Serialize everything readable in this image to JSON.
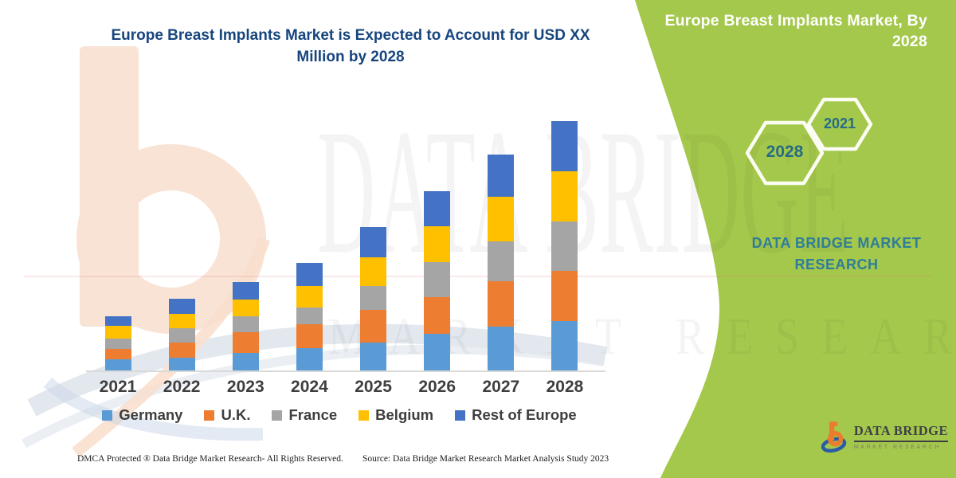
{
  "chart": {
    "title": "Europe Breast Implants Market is Expected to Account for USD XX Million by 2028",
    "title_color": "#17457E",
    "axis_line_color": "#D9D9D9",
    "label_color": "#3E3E3E"
  },
  "chart_data": {
    "type": "bar",
    "stacked": true,
    "categories": [
      "2021",
      "2022",
      "2023",
      "2024",
      "2025",
      "2026",
      "2027",
      "2028"
    ],
    "series": [
      {
        "name": "Germany",
        "color": "#5B9BD5",
        "values": [
          15,
          17,
          23,
          29,
          36,
          46,
          55,
          62
        ]
      },
      {
        "name": "U.K.",
        "color": "#ED7D31",
        "values": [
          13,
          19,
          25,
          29,
          40,
          46,
          57,
          62
        ]
      },
      {
        "name": "France",
        "color": "#A5A5A5",
        "values": [
          13,
          17,
          20,
          21,
          30,
          43,
          49,
          62
        ]
      },
      {
        "name": "Belgium",
        "color": "#FFC000",
        "values": [
          15,
          18,
          21,
          27,
          35,
          45,
          55,
          62
        ]
      },
      {
        "name": "Rest of Europe",
        "color": "#4472C4",
        "values": [
          12,
          19,
          22,
          28,
          38,
          43,
          53,
          62
        ]
      }
    ],
    "stack_order_bottom_to_top": [
      "Germany",
      "U.K.",
      "France",
      "Belgium",
      "Rest of Europe"
    ],
    "title": "Europe Breast Implants Market is Expected to Account for USD XX Million by 2028",
    "xlabel": "",
    "ylabel": "",
    "value_axis_visible": false,
    "note": "No numeric axis shown in source (values masked as USD XX Million); series values estimated from relative bar heights.",
    "legend_position": "bottom",
    "grid": false
  },
  "side_panel": {
    "bg_color": "#A4C84B",
    "title": "Europe Breast Implants Market, By 2028",
    "hexagon_large_label": "2028",
    "hexagon_small_label": "2021",
    "brand_text": "DATA BRIDGE MARKET RESEARCH",
    "year_text_color": "#266C84",
    "brand_text_color": "#2F7D99"
  },
  "logo": {
    "title": "DATA BRIDGE",
    "subtitle": "MARKET RESEARCH"
  },
  "watermark": {
    "line1": "DATA BRIDGE",
    "line2": "MARKET RESEARCH"
  },
  "footer": {
    "dmca": "DMCA Protected ® Data Bridge Market Research-  All Rights Reserved.",
    "source": "Source: Data Bridge Market Research  Market Analysis Study 2023"
  }
}
